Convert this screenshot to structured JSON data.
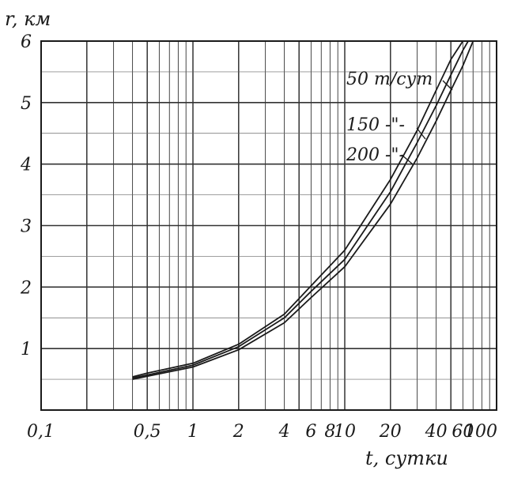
{
  "chart_data": {
    "type": "line",
    "xlabel": "t, сутки",
    "ylabel": "r, км",
    "x_scale": "log",
    "xlim": [
      0.1,
      100
    ],
    "ylim": [
      0,
      6
    ],
    "grid": true,
    "x_ticks": [
      0.1,
      0.5,
      1,
      2,
      4,
      6,
      8,
      10,
      20,
      40,
      60,
      100
    ],
    "x_tick_labels": [
      "0,1",
      "0,5",
      "1",
      "2",
      "4",
      "6",
      "8",
      "10",
      "20",
      "40",
      "60",
      "100"
    ],
    "y_ticks": [
      1,
      2,
      3,
      4,
      5,
      6
    ],
    "y_tick_labels": [
      "1",
      "2",
      "3",
      "4",
      "5",
      "6"
    ],
    "series": [
      {
        "name": "50 т/сут",
        "label": "50 т/сут",
        "x": [
          0.4,
          0.5,
          1,
          2,
          4,
          6,
          10,
          20,
          30,
          40,
          50,
          60
        ],
        "y": [
          0.54,
          0.6,
          0.76,
          1.07,
          1.56,
          2.02,
          2.6,
          3.75,
          4.55,
          5.2,
          5.7,
          6.0
        ]
      },
      {
        "name": "150",
        "label": "150 -\"-",
        "x": [
          0.4,
          0.5,
          1,
          2,
          4,
          6,
          10,
          20,
          30,
          40,
          50,
          60,
          65
        ],
        "y": [
          0.52,
          0.57,
          0.73,
          1.03,
          1.5,
          1.93,
          2.45,
          3.55,
          4.35,
          4.95,
          5.45,
          5.85,
          6.0
        ]
      },
      {
        "name": "200",
        "label": "200 -\"-",
        "x": [
          0.4,
          0.5,
          1,
          2,
          4,
          6,
          10,
          20,
          30,
          40,
          50,
          60,
          70
        ],
        "y": [
          0.5,
          0.55,
          0.7,
          0.98,
          1.42,
          1.83,
          2.33,
          3.35,
          4.1,
          4.7,
          5.2,
          5.6,
          6.0
        ]
      }
    ]
  }
}
